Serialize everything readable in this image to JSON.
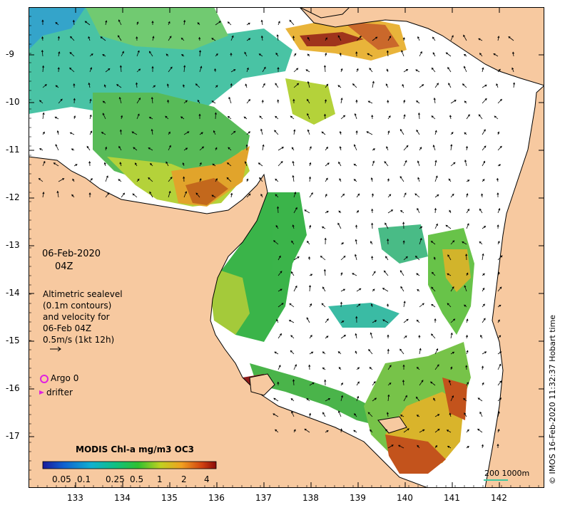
{
  "map": {
    "date_line1": "06-Feb-2020",
    "date_line2": "04Z",
    "legend_lines": [
      "Altimetric sealevel",
      "(0.1m contours)",
      "and velocity for",
      "06-Feb 04Z",
      "0.5m/s (1kt 12h)"
    ],
    "argo_label": "Argo 0",
    "drifter_label": "drifter",
    "colorbar_title": "MODIS Chl-a mg/m3 OC3",
    "colorbar_ticks": [
      "0.05",
      "0.1",
      "0.25",
      "0.5",
      "1",
      "2",
      "4"
    ],
    "scale_label": "200  1000m",
    "credit": "© IMOS 16-Feb-2020 11:32:37 Hobart time",
    "x_ticks": [
      "133",
      "134",
      "135",
      "136",
      "137",
      "138",
      "139",
      "140",
      "141",
      "142"
    ],
    "y_ticks": [
      "-9",
      "-10",
      "-11",
      "-12",
      "-13",
      "-14",
      "-15",
      "-16",
      "-17"
    ],
    "colors": {
      "land": "#f7c9a0",
      "ocean": "#ffffff",
      "argo": "#e020e0",
      "drifter": "#e020e0",
      "scale_bar": "#40c8a0"
    }
  }
}
